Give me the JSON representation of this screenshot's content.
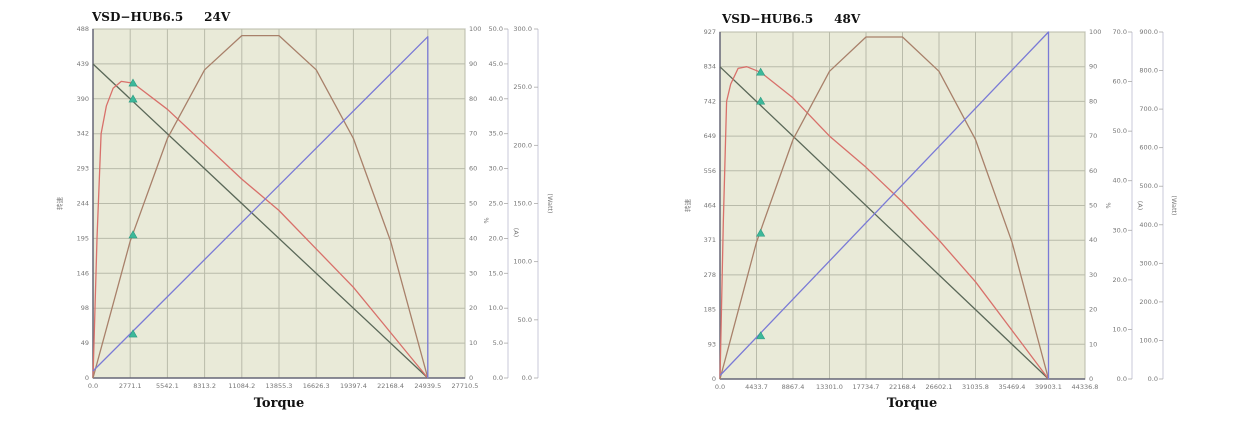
{
  "chart_data": [
    {
      "type": "line",
      "title": "VSD−HUB6.5     24V",
      "xlabel": "Torque",
      "xlim": [
        0,
        27710.5
      ],
      "x_ticks": [
        "0.0",
        "2771.1",
        "5542.1",
        "8313.2",
        "11084.2",
        "13855.3",
        "16626.3",
        "19397.4",
        "22168.4",
        "24939.5",
        "27710.5"
      ],
      "left_axis": {
        "label": "转速",
        "range": [
          0,
          488
        ],
        "ticks": [
          "0",
          "49",
          "98",
          "146",
          "195",
          "244",
          "293",
          "342",
          "390",
          "439",
          "488"
        ]
      },
      "right_axes": [
        {
          "label": "%",
          "range": [
            0,
            100
          ],
          "ticks": [
            "0",
            "10",
            "20",
            "30",
            "40",
            "50",
            "60",
            "70",
            "80",
            "90",
            "100"
          ]
        },
        {
          "label": "(A)",
          "range": [
            0,
            50
          ],
          "ticks": [
            "0.0",
            "5.0",
            "10.0",
            "15.0",
            "20.0",
            "25.0",
            "30.0",
            "35.0",
            "40.0",
            "45.0",
            "50.0"
          ]
        },
        {
          "label": "(Watt)",
          "range": [
            0,
            300
          ],
          "ticks": [
            "0.0",
            "50.0",
            "100.0",
            "150.0",
            "200.0",
            "250.0",
            "300.0"
          ]
        }
      ],
      "grid": true,
      "background": "#e9ead8",
      "series": [
        {
          "axis": "left",
          "color": "#5a6858",
          "points": [
            [
              0,
              439
            ],
            [
              24939.5,
              0
            ]
          ]
        },
        {
          "axis": "right0",
          "color": "#d8706a",
          "points": [
            [
              0,
              0
            ],
            [
              300,
              40
            ],
            [
              600,
              70
            ],
            [
              1000,
              78
            ],
            [
              1500,
              83
            ],
            [
              2110,
              85
            ],
            [
              2980,
              84.5
            ],
            [
              5542.1,
              77
            ],
            [
              8313.2,
              67
            ],
            [
              11084.2,
              57
            ],
            [
              13855.3,
              48
            ],
            [
              16626.3,
              37
            ],
            [
              19397.4,
              26
            ],
            [
              22168.4,
              13
            ],
            [
              24939.5,
              0
            ]
          ]
        },
        {
          "axis": "right2",
          "color": "#a8806a",
          "points": [
            [
              0,
              0
            ],
            [
              2771.1,
              117.6
            ],
            [
              5542.1,
              205.9
            ],
            [
              8313.2,
              264.9
            ],
            [
              11084.2,
              294.3
            ],
            [
              13855.3,
              294.3
            ],
            [
              16626.3,
              264.9
            ],
            [
              19397.4,
              205.9
            ],
            [
              22168.4,
              117.6
            ],
            [
              24939.5,
              0
            ]
          ]
        },
        {
          "axis": "right1",
          "color": "#7a7ad6",
          "points": [
            [
              0,
              1
            ],
            [
              24939.5,
              48.9
            ],
            [
              24939.5,
              0
            ]
          ]
        }
      ],
      "markers": {
        "color": "#3cb89a",
        "x": 2980,
        "points": [
          {
            "axis": "left",
            "y": 390
          },
          {
            "axis": "right0",
            "y": 84.5
          },
          {
            "axis": "right2",
            "y": 123
          },
          {
            "axis": "right1",
            "y": 6.3
          }
        ]
      }
    },
    {
      "type": "line",
      "title": "VSD−HUB6.5     48V",
      "xlabel": "Torque",
      "xlim": [
        0,
        44336.8
      ],
      "x_ticks": [
        "0.0",
        "4433.7",
        "8867.4",
        "13301.0",
        "17734.7",
        "22168.4",
        "26602.1",
        "31035.8",
        "35469.4",
        "39903.1",
        "44336.8"
      ],
      "left_axis": {
        "label": "转速",
        "range": [
          0,
          927
        ],
        "ticks": [
          "0",
          "93",
          "185",
          "278",
          "371",
          "464",
          "556",
          "649",
          "742",
          "834",
          "927"
        ]
      },
      "right_axes": [
        {
          "label": "%",
          "range": [
            0,
            100
          ],
          "ticks": [
            "0",
            "10",
            "20",
            "30",
            "40",
            "50",
            "60",
            "70",
            "80",
            "90",
            "100"
          ]
        },
        {
          "label": "(A)",
          "range": [
            0,
            70
          ],
          "ticks": [
            "0.0",
            "10.0",
            "20.0",
            "30.0",
            "40.0",
            "50.0",
            "60.0",
            "70.0"
          ]
        },
        {
          "label": "(Watt)",
          "range": [
            0,
            900
          ],
          "ticks": [
            "0.0",
            "100.0",
            "200.0",
            "300.0",
            "400.0",
            "500.0",
            "600.0",
            "700.0",
            "800.0",
            "900.0"
          ]
        }
      ],
      "grid": true,
      "background": "#e9ead8",
      "series": [
        {
          "axis": "left",
          "color": "#5a6858",
          "points": [
            [
              0,
              834
            ],
            [
              39903.1,
              0
            ]
          ]
        },
        {
          "axis": "right0",
          "color": "#d8706a",
          "points": [
            [
              0,
              0
            ],
            [
              400,
              45
            ],
            [
              800,
              80
            ],
            [
              1300,
              85
            ],
            [
              2200,
              89.5
            ],
            [
              3240,
              90
            ],
            [
              4940,
              88.4
            ],
            [
              8867.4,
              81
            ],
            [
              13301,
              70
            ],
            [
              17734.7,
              61
            ],
            [
              22168.4,
              51
            ],
            [
              26602.1,
              40
            ],
            [
              31035.8,
              28
            ],
            [
              35469.4,
              14
            ],
            [
              39903.1,
              0
            ]
          ]
        },
        {
          "axis": "right2",
          "color": "#a8806a",
          "points": [
            [
              0,
              0
            ],
            [
              4433.7,
              354.8
            ],
            [
              8867.4,
              621
            ],
            [
              13301,
              798
            ],
            [
              17734.7,
              887
            ],
            [
              22168.4,
              887
            ],
            [
              26602.1,
              798
            ],
            [
              31035.8,
              621
            ],
            [
              35469.4,
              354.8
            ],
            [
              39903.1,
              0
            ]
          ]
        },
        {
          "axis": "right1",
          "color": "#7a7ad6",
          "points": [
            [
              0,
              0.7
            ],
            [
              39903.1,
              70
            ],
            [
              39903.1,
              0
            ]
          ]
        }
      ],
      "markers": {
        "color": "#3cb89a",
        "x": 4940,
        "points": [
          {
            "axis": "left",
            "y": 742
          },
          {
            "axis": "right0",
            "y": 88.4
          },
          {
            "axis": "right2",
            "y": 378
          },
          {
            "axis": "right1",
            "y": 8.7
          }
        ]
      }
    }
  ]
}
